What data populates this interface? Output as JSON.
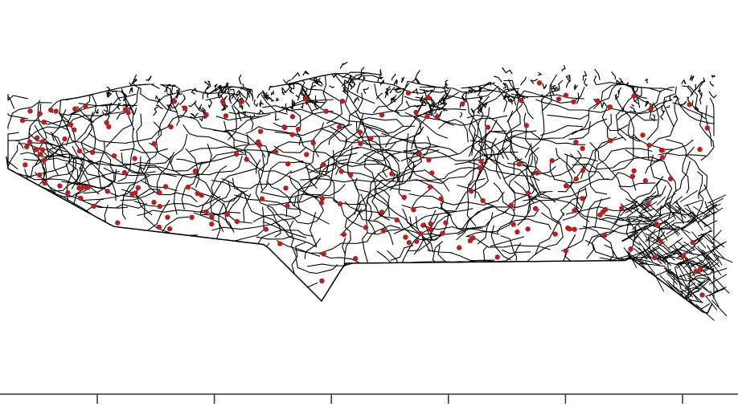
{
  "map": {
    "background_color": "#ffffff",
    "road_color": "#000000",
    "point_color": "#b22222",
    "coastline_color": "#000000",
    "axis_color": "#333333",
    "tick_count": 6,
    "point_count_estimate": 200
  }
}
